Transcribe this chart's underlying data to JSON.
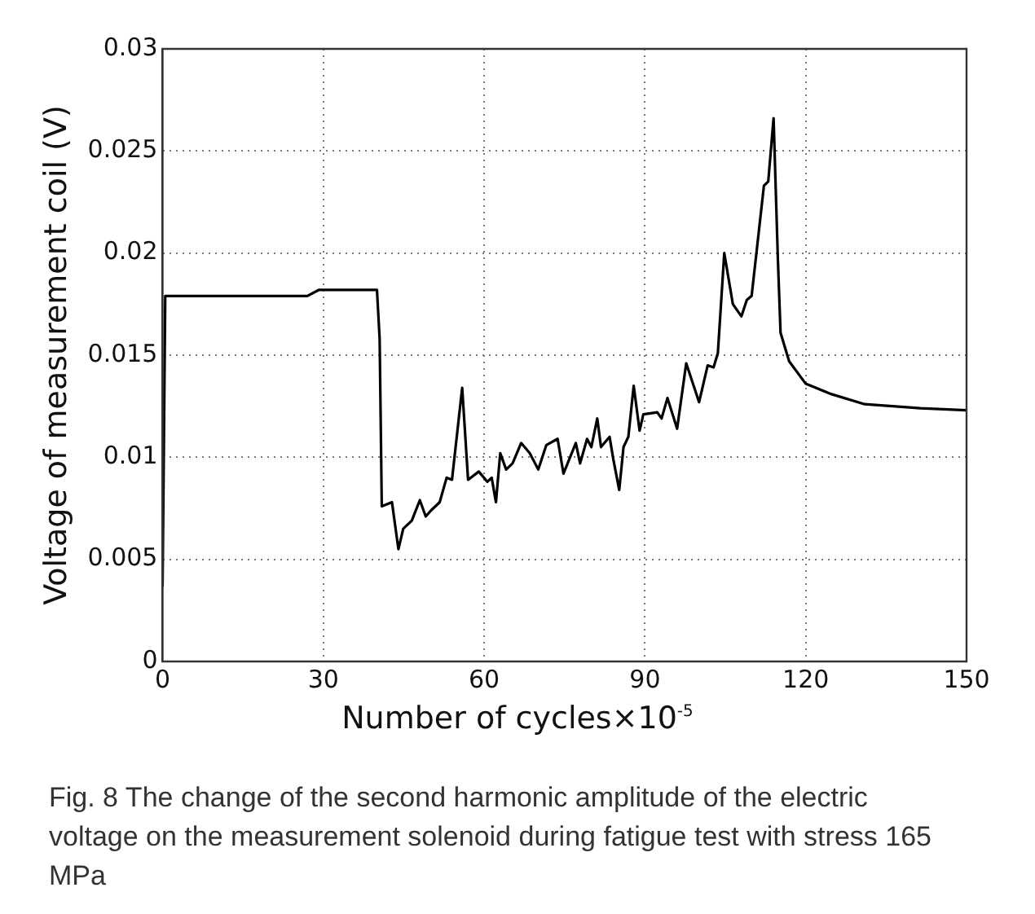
{
  "chart_data": {
    "type": "line",
    "xlabel": "Number of cycles×10$^{-5}$",
    "ylabel": "Voltage of measurement coil (V)",
    "annotations": [
      "Fig. 8 The change of the second harmonic amplitude of the electric voltage on the measurement solenoid during fatigue test with stress 165 MPa"
    ],
    "x": [
      0,
      0.5,
      27,
      29.2,
      40,
      40.5,
      40.9,
      42.8,
      44,
      44.9,
      46.5,
      48,
      49.1,
      50.1,
      51.7,
      53,
      54,
      55.9,
      57,
      59,
      60.6,
      61.4,
      62.2,
      63,
      64.1,
      65.3,
      66.9,
      68.5,
      70.1,
      71.6,
      73.7,
      74.8,
      77.1,
      77.9,
      79.2,
      80,
      81.1,
      81.8,
      83.4,
      84.1,
      85.2,
      86,
      86.9,
      87.9,
      89,
      89.7,
      92.3,
      93.1,
      94.2,
      96,
      97.7,
      100.1,
      101.7,
      102.8,
      103.6,
      104.8,
      106.4,
      108,
      109,
      109.9,
      112.2,
      113,
      114,
      114.8,
      115.3,
      116.9,
      120,
      124.7,
      131,
      141.4,
      150
    ],
    "series": [
      {
        "color": "#000000",
        "values": [
          0.0037,
          0.0179,
          0.0179,
          0.0182,
          0.0182,
          0.0158,
          0.0076,
          0.0078,
          0.0055,
          0.0065,
          0.0069,
          0.0079,
          0.0071,
          0.0074,
          0.0078,
          0.009,
          0.0089,
          0.0134,
          0.0089,
          0.0093,
          0.0088,
          0.009,
          0.0078,
          0.0102,
          0.0094,
          0.0097,
          0.0107,
          0.0102,
          0.0094,
          0.0106,
          0.0109,
          0.0092,
          0.0107,
          0.0097,
          0.0109,
          0.0105,
          0.0119,
          0.0105,
          0.011,
          0.0099,
          0.0084,
          0.0105,
          0.011,
          0.0135,
          0.0113,
          0.0121,
          0.0122,
          0.0119,
          0.0129,
          0.0114,
          0.0146,
          0.0127,
          0.0145,
          0.0144,
          0.0151,
          0.02,
          0.0175,
          0.0169,
          0.0177,
          0.0179,
          0.0233,
          0.0235,
          0.0266,
          0.0197,
          0.0161,
          0.0147,
          0.0136,
          0.0131,
          0.0126,
          0.0124,
          0.0123
        ]
      }
    ],
    "xlim": [
      0,
      150
    ],
    "xticks": [
      0,
      30,
      60,
      90,
      120,
      150
    ],
    "ylim": [
      0,
      0.03
    ],
    "yticks": [
      0,
      0.005,
      0.01,
      0.015,
      0.02,
      0.025,
      0.03
    ],
    "grid": true,
    "marker": "none",
    "line_style": "solid",
    "legend": false
  }
}
